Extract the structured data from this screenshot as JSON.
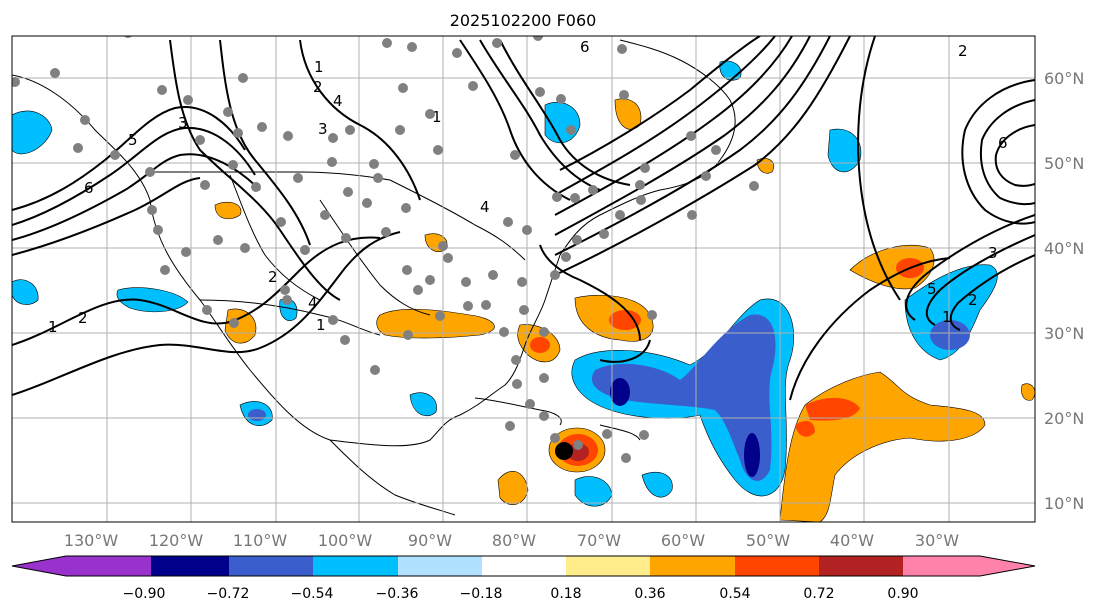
{
  "title": "2025102200 F060",
  "lon_ticks": [
    "130°W",
    "120°W",
    "110°W",
    "100°W",
    "90°W",
    "80°W",
    "70°W",
    "60°W",
    "50°W",
    "40°W",
    "30°W"
  ],
  "lat_ticks": [
    "60°N",
    "50°N",
    "40°N",
    "30°N",
    "20°N",
    "10°N"
  ],
  "colorbar": {
    "labels": [
      "−0.90",
      "−0.72",
      "−0.54",
      "−0.36",
      "−0.18",
      "0.18",
      "0.36",
      "0.54",
      "0.72",
      "0.90"
    ],
    "colors": [
      "#9932cc",
      "#00008b",
      "#3a5fcd",
      "#00bfff",
      "#b0e2ff",
      "#ffffff",
      "#ffec8b",
      "#ffa500",
      "#ff4500",
      "#b22222",
      "#ff82ab"
    ]
  },
  "contour_labels": [
    "1",
    "2",
    "3",
    "6",
    "1",
    "2",
    "3",
    "4",
    "5",
    "6",
    "1",
    "2",
    "4",
    "1",
    "4",
    "1",
    "2",
    "3",
    "5",
    "6",
    "2"
  ],
  "colors": {
    "land_outline": "#000000",
    "grid": "#b0b0b0",
    "station_dot": "#808080",
    "storm_center": "#000000"
  }
}
